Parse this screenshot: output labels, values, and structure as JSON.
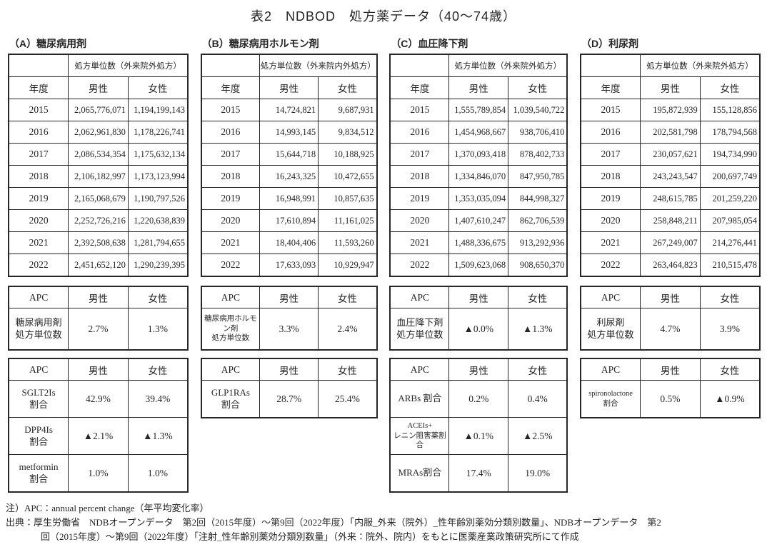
{
  "title": "表2　NDBOD　処方薬データ（40～74歳）",
  "colors": {
    "background": "#ffffff",
    "text": "#262626",
    "border": "#262626"
  },
  "sections": [
    {
      "label": "（A）糖尿病用剤",
      "main_table": {
        "unit_header": "処方単位数（外来院外処方）",
        "col_headers": [
          "年度",
          "男性",
          "女性"
        ],
        "rows": [
          [
            "2015",
            "2,065,776,071",
            "1,194,199,143"
          ],
          [
            "2016",
            "2,062,961,830",
            "1,178,226,741"
          ],
          [
            "2017",
            "2,086,534,354",
            "1,175,632,134"
          ],
          [
            "2018",
            "2,106,182,997",
            "1,173,123,994"
          ],
          [
            "2019",
            "2,165,068,679",
            "1,190,797,526"
          ],
          [
            "2020",
            "2,252,726,216",
            "1,220,638,839"
          ],
          [
            "2021",
            "2,392,508,638",
            "1,281,794,655"
          ],
          [
            "2022",
            "2,451,652,120",
            "1,290,239,395"
          ]
        ]
      },
      "apc_table1": {
        "headers": [
          "APC",
          "男性",
          "女性"
        ],
        "rows": [
          {
            "label": "糖尿病用剤\n処方単位数",
            "male": "2.7%",
            "female": "1.3%"
          }
        ]
      },
      "apc_table2": {
        "headers": [
          "APC",
          "男性",
          "女性"
        ],
        "rows": [
          {
            "label": "SGLT2Is\n割合",
            "male": "42.9%",
            "female": "39.4%"
          },
          {
            "label": "DPP4Is\n割合",
            "male": "▲2.1%",
            "female": "▲1.3%"
          },
          {
            "label": "metformin\n割合",
            "male": "1.0%",
            "female": "1.0%"
          }
        ]
      }
    },
    {
      "label": "（B）糖尿病用ホルモン剤",
      "main_table": {
        "unit_header": "処方単位数（外来院内外処方）",
        "col_headers": [
          "年度",
          "男性",
          "女性"
        ],
        "rows": [
          [
            "2015",
            "14,724,821",
            "9,687,931"
          ],
          [
            "2016",
            "14,993,145",
            "9,834,512"
          ],
          [
            "2017",
            "15,644,718",
            "10,188,925"
          ],
          [
            "2018",
            "16,243,325",
            "10,472,655"
          ],
          [
            "2019",
            "16,948,991",
            "10,857,635"
          ],
          [
            "2020",
            "17,610,894",
            "11,161,025"
          ],
          [
            "2021",
            "18,404,406",
            "11,593,260"
          ],
          [
            "2022",
            "17,633,093",
            "10,929,947"
          ]
        ]
      },
      "apc_table1": {
        "headers": [
          "APC",
          "男性",
          "女性"
        ],
        "rows": [
          {
            "label": "糖尿病用ホルモン剤\n処方単位数",
            "male": "3.3%",
            "female": "2.4%"
          }
        ]
      },
      "apc_table2": {
        "headers": [
          "APC",
          "男性",
          "女性"
        ],
        "rows": [
          {
            "label": "GLP1RAs\n割合",
            "male": "28.7%",
            "female": "25.4%"
          }
        ]
      }
    },
    {
      "label": "（C）血圧降下剤",
      "main_table": {
        "unit_header": "処方単位数（外来院外処方）",
        "col_headers": [
          "年度",
          "男性",
          "女性"
        ],
        "rows": [
          [
            "2015",
            "1,555,789,854",
            "1,039,540,722"
          ],
          [
            "2016",
            "1,454,968,667",
            "938,706,410"
          ],
          [
            "2017",
            "1,370,093,418",
            "878,402,733"
          ],
          [
            "2018",
            "1,334,846,070",
            "847,950,785"
          ],
          [
            "2019",
            "1,353,035,094",
            "844,998,327"
          ],
          [
            "2020",
            "1,407,610,247",
            "862,706,539"
          ],
          [
            "2021",
            "1,488,336,675",
            "913,292,936"
          ],
          [
            "2022",
            "1,509,623,068",
            "908,650,370"
          ]
        ]
      },
      "apc_table1": {
        "headers": [
          "APC",
          "男性",
          "女性"
        ],
        "rows": [
          {
            "label": "血圧降下剤\n処方単位数",
            "male": "▲0.0%",
            "female": "▲1.3%"
          }
        ]
      },
      "apc_table2": {
        "headers": [
          "APC",
          "男性",
          "女性"
        ],
        "rows": [
          {
            "label": "ARBs 割合",
            "male": "0.2%",
            "female": "0.4%"
          },
          {
            "label": "ACEIs+\nレニン阻害薬割合",
            "male": "▲0.1%",
            "female": "▲2.5%"
          },
          {
            "label": "MRAs割合",
            "male": "17.4%",
            "female": "19.0%"
          }
        ]
      }
    },
    {
      "label": "（D）利尿剤",
      "main_table": {
        "unit_header": "処方単位数（外来院外処方）",
        "col_headers": [
          "年度",
          "男性",
          "女性"
        ],
        "rows": [
          [
            "2015",
            "195,872,939",
            "155,128,856"
          ],
          [
            "2016",
            "202,581,798",
            "178,794,568"
          ],
          [
            "2017",
            "230,057,621",
            "194,734,990"
          ],
          [
            "2018",
            "243,243,547",
            "200,697,749"
          ],
          [
            "2019",
            "248,615,785",
            "201,259,220"
          ],
          [
            "2020",
            "258,848,211",
            "207,985,054"
          ],
          [
            "2021",
            "267,249,007",
            "214,276,441"
          ],
          [
            "2022",
            "263,464,823",
            "210,515,478"
          ]
        ]
      },
      "apc_table1": {
        "headers": [
          "APC",
          "男性",
          "女性"
        ],
        "rows": [
          {
            "label": "利尿剤\n処方単位数",
            "male": "4.7%",
            "female": "3.9%"
          }
        ]
      },
      "apc_table2": {
        "headers": [
          "APC",
          "男性",
          "女性"
        ],
        "rows": [
          {
            "label": "spironolactone\n割合",
            "male": "0.5%",
            "female": "▲0.9%"
          }
        ]
      }
    }
  ],
  "footnotes": {
    "note": "注）APC：annual percent change（年平均変化率）",
    "source_line1": "出典：厚生労働省　NDBオープンデータ　第2回（2015年度）～第9回（2022年度）「内服_外来（院外）_性年齢別薬効分類別数量」、NDBオープンデータ　第2",
    "source_line2": "回（2015年度）～第9回（2022年度）「注射_性年齢別薬効分類別数量」（外来：院外、院内）をもとに医薬産業政策研究所にて作成"
  }
}
